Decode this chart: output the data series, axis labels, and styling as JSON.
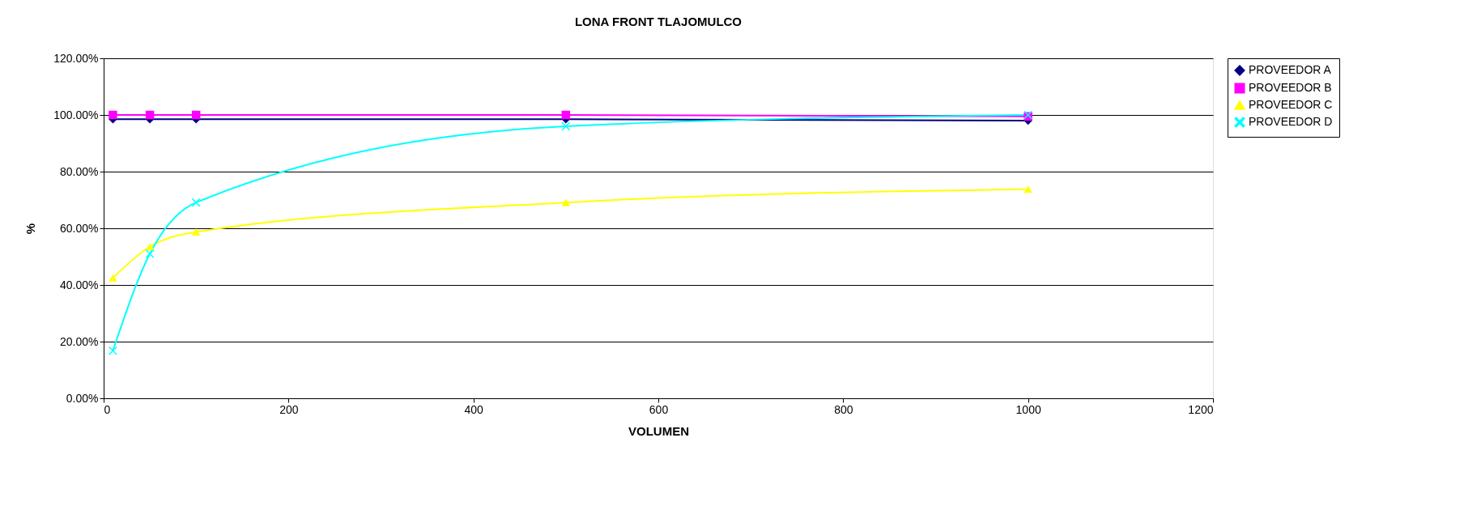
{
  "chart_data": {
    "type": "line",
    "title": "LONA FRONT TLAJOMULCO",
    "xlabel": "VOLUMEN",
    "ylabel": "%",
    "x": [
      10,
      50,
      100,
      500,
      1000
    ],
    "series": [
      {
        "name": "PROVEEDOR A",
        "color": "#000080",
        "marker": "diamond",
        "values": [
          98.5,
          98.5,
          98.5,
          98.5,
          98
        ]
      },
      {
        "name": "PROVEEDOR B",
        "color": "#ff00ff",
        "marker": "square",
        "values": [
          100,
          100,
          100,
          100,
          99.5
        ]
      },
      {
        "name": "PROVEEDOR C",
        "color": "#ffff00",
        "marker": "triangle",
        "values": [
          42.5,
          53.5,
          58.7,
          69.1,
          73.8
        ]
      },
      {
        "name": "PROVEEDOR D",
        "color": "#00ffff",
        "marker": "cross",
        "values": [
          16.8,
          51,
          69.1,
          96,
          100
        ]
      }
    ],
    "xlim": [
      0,
      1200
    ],
    "xticks": [
      0,
      200,
      400,
      600,
      800,
      1000,
      1200
    ],
    "ylim": [
      0,
      120
    ],
    "yticks": [
      {
        "value": 0,
        "label": "0.00%"
      },
      {
        "value": 20,
        "label": "20.00%"
      },
      {
        "value": 40,
        "label": "40.00%"
      },
      {
        "value": 60,
        "label": "60.00%"
      },
      {
        "value": 80,
        "label": "80.00%"
      },
      {
        "value": 100,
        "label": "100.00%"
      },
      {
        "value": 120,
        "label": "120.00%"
      }
    ],
    "grid": "y",
    "legend": "right",
    "line_style": "solid"
  }
}
